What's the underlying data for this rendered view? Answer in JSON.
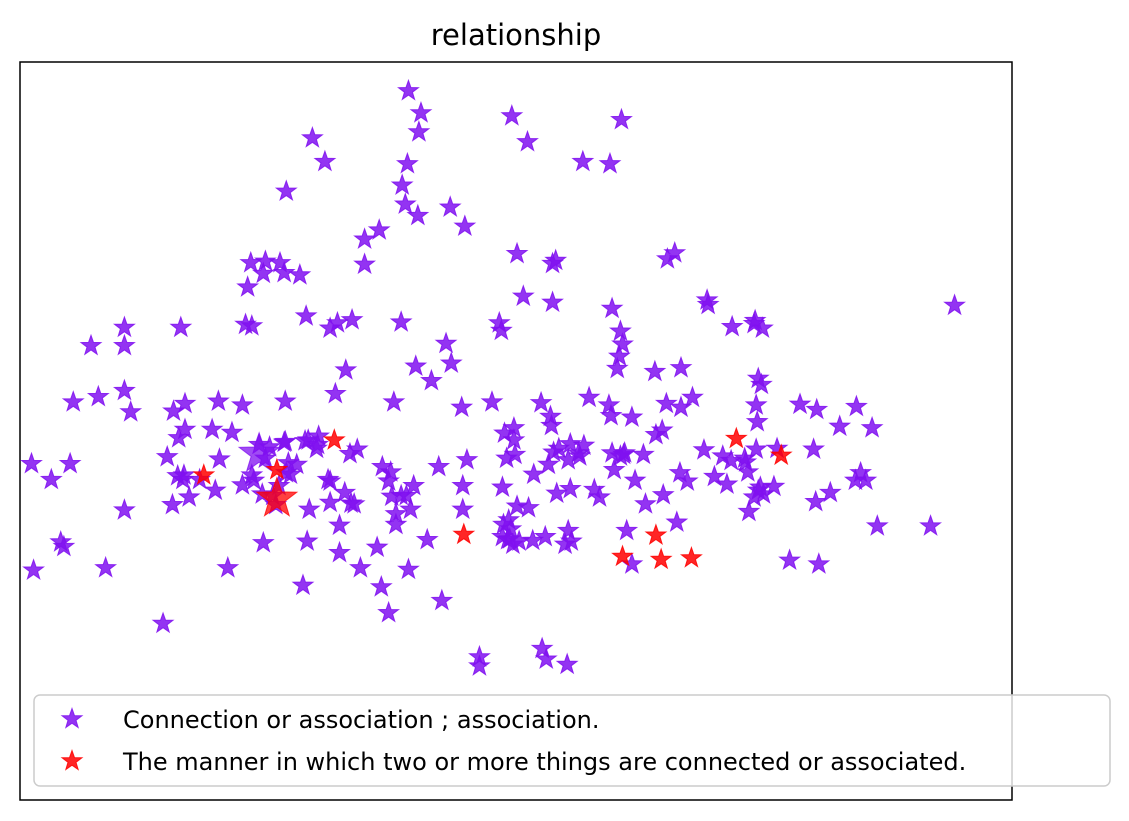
{
  "chart_data": {
    "type": "scatter",
    "title": "relationship",
    "xlabel": "",
    "ylabel": "",
    "xlim": [
      -0.35,
      0.6
    ],
    "ylim": [
      -0.45,
      0.52
    ],
    "axes_ticks": false,
    "grid": false,
    "legend_position": "lower-right",
    "marker": "star",
    "series": [
      {
        "name": "Connection or association ; association.",
        "color": "#8010f0",
        "highlight": [
          -0.121,
          0.005
        ],
        "points": [
          [
            0.022,
            0.482
          ],
          [
            0.034,
            0.453
          ],
          [
            0.121,
            0.449
          ],
          [
            0.226,
            0.444
          ],
          [
            0.032,
            0.428
          ],
          [
            -0.07,
            0.42
          ],
          [
            0.136,
            0.415
          ],
          [
            0.021,
            0.386
          ],
          [
            0.189,
            0.389
          ],
          [
            0.215,
            0.386
          ],
          [
            -0.058,
            0.389
          ],
          [
            0.016,
            0.358
          ],
          [
            -0.095,
            0.35
          ],
          [
            0.019,
            0.333
          ],
          [
            0.062,
            0.329
          ],
          [
            0.031,
            0.318
          ],
          [
            0.076,
            0.304
          ],
          [
            -0.006,
            0.299
          ],
          [
            -0.02,
            0.287
          ],
          [
            0.126,
            0.268
          ],
          [
            0.277,
            0.269
          ],
          [
            0.27,
            0.261
          ],
          [
            -0.02,
            0.254
          ],
          [
            0.16,
            0.255
          ],
          [
            0.163,
            0.259
          ],
          [
            -0.101,
            0.256
          ],
          [
            -0.115,
            0.258
          ],
          [
            -0.097,
            0.243
          ],
          [
            -0.129,
            0.256
          ],
          [
            -0.117,
            0.242
          ],
          [
            -0.082,
            0.24
          ],
          [
            -0.132,
            0.224
          ],
          [
            0.132,
            0.212
          ],
          [
            0.16,
            0.204
          ],
          [
            0.015,
            0.178
          ],
          [
            0.308,
            0.207
          ],
          [
            0.309,
            0.201
          ],
          [
            0.217,
            0.196
          ],
          [
            0.225,
            0.166
          ],
          [
            0.353,
            0.176
          ],
          [
            0.354,
            0.18
          ],
          [
            0.332,
            0.172
          ],
          [
            0.361,
            0.17
          ],
          [
            -0.076,
            0.186
          ],
          [
            -0.25,
            0.171
          ],
          [
            -0.196,
            0.171
          ],
          [
            -0.128,
            0.173
          ],
          [
            -0.134,
            0.175
          ],
          [
            -0.046,
            0.177
          ],
          [
            -0.032,
            0.181
          ],
          [
            -0.053,
            0.17
          ],
          [
            0.058,
            0.15
          ],
          [
            0.111,
            0.167
          ],
          [
            0.109,
            0.177
          ],
          [
            0.227,
            0.149
          ],
          [
            -0.282,
            0.147
          ],
          [
            -0.25,
            0.147
          ],
          [
            0.063,
            0.124
          ],
          [
            -0.038,
            0.115
          ],
          [
            0.029,
            0.12
          ],
          [
            0.044,
            0.101
          ],
          [
            0.222,
            0.117
          ],
          [
            0.258,
            0.113
          ],
          [
            0.283,
            0.118
          ],
          [
            0.224,
            0.133
          ],
          [
            0.357,
            0.104
          ],
          [
            0.36,
            0.096
          ],
          [
            0.294,
            0.079
          ],
          [
            0.195,
            0.079
          ],
          [
            -0.25,
            0.088
          ],
          [
            -0.275,
            0.08
          ],
          [
            -0.299,
            0.073
          ],
          [
            -0.16,
            0.074
          ],
          [
            -0.096,
            0.074
          ],
          [
            0.008,
            0.073
          ],
          [
            -0.048,
            0.084
          ],
          [
            0.073,
            0.066
          ],
          [
            0.102,
            0.073
          ],
          [
            0.149,
            0.072
          ],
          [
            0.214,
            0.069
          ],
          [
            0.269,
            0.071
          ],
          [
            0.283,
            0.066
          ],
          [
            -0.192,
            0.071
          ],
          [
            -0.244,
            0.06
          ],
          [
            -0.137,
            0.069
          ],
          [
            0.236,
            0.053
          ],
          [
            0.158,
            0.054
          ],
          [
            0.216,
            0.055
          ],
          [
            0.159,
            0.042
          ],
          [
            0.123,
            0.039
          ],
          [
            0.114,
            0.032
          ],
          [
            0.397,
            0.07
          ],
          [
            0.355,
            0.069
          ],
          [
            0.451,
            0.067
          ],
          [
            0.265,
            0.036
          ],
          [
            0.356,
            0.047
          ],
          [
            -0.203,
            0.061
          ],
          [
            -0.198,
            0.026
          ],
          [
            -0.192,
            0.037
          ],
          [
            -0.166,
            0.037
          ],
          [
            -0.147,
            0.033
          ],
          [
            -0.121,
            0.017
          ],
          [
            -0.111,
            0.014
          ],
          [
            -0.097,
            0.02
          ],
          [
            -0.096,
            0.021
          ],
          [
            -0.077,
            0.022
          ],
          [
            -0.074,
            0.023
          ],
          [
            -0.064,
            0.028
          ],
          [
            -0.066,
            0.012
          ],
          [
            -0.065,
            0.017
          ],
          [
            0.123,
            0.023
          ],
          [
            0.124,
            0.004
          ],
          [
            0.161,
            0.007
          ],
          [
            0.185,
            0.006
          ],
          [
            0.177,
            0.018
          ],
          [
            0.166,
            0.012
          ],
          [
            0.19,
            0.016
          ],
          [
            0.217,
            0.006
          ],
          [
            0.225,
            0.002
          ],
          [
            0.247,
            0.004
          ],
          [
            0.229,
            0.006
          ],
          [
            0.228,
            0.004
          ],
          [
            0.259,
            0.03
          ],
          [
            0.323,
            0.002
          ],
          [
            0.305,
            0.01
          ],
          [
            0.331,
            -0.004
          ],
          [
            0.344,
            -0.001
          ],
          [
            0.355,
            0.011
          ],
          [
            0.375,
            0.012
          ],
          [
            0.41,
            0.011
          ],
          [
            0.435,
            0.041
          ],
          [
            0.413,
            0.063
          ],
          [
            0.466,
            0.039
          ],
          [
            0.545,
            0.2
          ],
          [
            -0.339,
            -0.008
          ],
          [
            -0.302,
            -0.008
          ],
          [
            -0.209,
            0.001
          ],
          [
            -0.159,
            -0.002
          ],
          [
            -0.115,
            -0.001
          ],
          [
            -0.093,
            -0.007
          ],
          [
            -0.034,
            0.005
          ],
          [
            -0.027,
            0.011
          ],
          [
            -0.003,
            -0.012
          ],
          [
            0.051,
            -0.012
          ],
          [
            0.078,
            -0.003
          ],
          [
            0.116,
            -0.001
          ],
          [
            0.175,
            -0.003
          ],
          [
            0.186,
            0.002
          ],
          [
            0.156,
            -0.009
          ],
          [
            0.142,
            -0.022
          ],
          [
            0.219,
            -0.016
          ],
          [
            0.282,
            -0.02
          ],
          [
            0.315,
            -0.025
          ],
          [
            0.289,
            -0.031
          ],
          [
            0.347,
            -0.019
          ],
          [
            0.357,
            -0.043
          ],
          [
            0.359,
            -0.039
          ],
          [
            0.362,
            -0.048
          ],
          [
            0.353,
            -0.052
          ],
          [
            0.372,
            -0.038
          ],
          [
            0.455,
            -0.02
          ],
          [
            0.46,
            -0.03
          ],
          [
            0.345,
            -0.006
          ],
          [
            -0.193,
            -0.023
          ],
          [
            -0.199,
            -0.024
          ],
          [
            -0.194,
            -0.029
          ],
          [
            -0.178,
            -0.029
          ],
          [
            -0.128,
            -0.023
          ],
          [
            -0.085,
            -0.009
          ],
          [
            -0.095,
            -0.02
          ],
          [
            -0.091,
            -0.022
          ],
          [
            -0.102,
            -0.037
          ],
          [
            -0.126,
            -0.03
          ],
          [
            -0.118,
            -0.048
          ],
          [
            -0.108,
            -0.05
          ],
          [
            -0.137,
            -0.036
          ],
          [
            -0.163,
            -0.043
          ],
          [
            -0.188,
            -0.052
          ],
          [
            -0.204,
            -0.062
          ],
          [
            -0.25,
            -0.069
          ],
          [
            -0.32,
            -0.029
          ],
          [
            -0.105,
            -0.062
          ],
          [
            -0.053,
            -0.031
          ],
          [
            -0.055,
            -0.029
          ],
          [
            -0.039,
            -0.046
          ],
          [
            -0.03,
            -0.061
          ],
          [
            -0.053,
            -0.059
          ],
          [
            -0.033,
            -0.06
          ],
          [
            -0.073,
            -0.068
          ],
          [
            0.005,
            -0.019
          ],
          [
            0.003,
            -0.031
          ],
          [
            0.006,
            -0.051
          ],
          [
            0.015,
            -0.05
          ],
          [
            0.02,
            -0.05
          ],
          [
            0.027,
            -0.037
          ],
          [
            0.074,
            -0.037
          ],
          [
            0.112,
            -0.039
          ],
          [
            0.126,
            -0.064
          ],
          [
            0.137,
            -0.066
          ],
          [
            0.164,
            -0.047
          ],
          [
            0.177,
            -0.041
          ],
          [
            0.2,
            -0.042
          ],
          [
            0.205,
            -0.052
          ],
          [
            0.239,
            -0.03
          ],
          [
            0.249,
            -0.061
          ],
          [
            0.266,
            -0.049
          ],
          [
            0.327,
            -0.035
          ],
          [
            0.348,
            -0.071
          ],
          [
            0.412,
            -0.058
          ],
          [
            0.426,
            -0.046
          ],
          [
            0.45,
            -0.03
          ],
          [
            -0.044,
            -0.089
          ],
          [
            0.01,
            -0.074
          ],
          [
            0.01,
            -0.088
          ],
          [
            0.024,
            -0.068
          ],
          [
            0.074,
            -0.068
          ],
          [
            0.113,
            -0.088
          ],
          [
            0.112,
            -0.104
          ],
          [
            0.119,
            -0.107
          ],
          [
            0.117,
            -0.108
          ],
          [
            0.122,
            -0.114
          ],
          [
            0.128,
            -0.11
          ],
          [
            0.141,
            -0.109
          ],
          [
            0.118,
            -0.082
          ],
          [
            0.12,
            -0.094
          ],
          [
            0.153,
            -0.104
          ],
          [
            0.175,
            -0.096
          ],
          [
            0.172,
            -0.114
          ],
          [
            0.178,
            -0.11
          ],
          [
            0.231,
            -0.096
          ],
          [
            0.279,
            -0.085
          ],
          [
            0.236,
            -0.14
          ],
          [
            0.387,
            -0.135
          ],
          [
            0.415,
            -0.14
          ],
          [
            0.471,
            -0.09
          ],
          [
            0.522,
            -0.09
          ],
          [
            -0.337,
            -0.148
          ],
          [
            -0.311,
            -0.111
          ],
          [
            -0.308,
            -0.117
          ],
          [
            -0.268,
            -0.145
          ],
          [
            -0.151,
            -0.145
          ],
          [
            -0.117,
            -0.112
          ],
          [
            -0.075,
            -0.11
          ],
          [
            -0.008,
            -0.118
          ],
          [
            -0.024,
            -0.145
          ],
          [
            -0.004,
            -0.17
          ],
          [
            -0.044,
            -0.125
          ],
          [
            -0.079,
            -0.168
          ],
          [
            0.022,
            -0.147
          ],
          [
            0.04,
            -0.108
          ],
          [
            0.054,
            -0.188
          ],
          [
            -0.213,
            -0.218
          ],
          [
            0.003,
            -0.204
          ],
          [
            0.15,
            -0.251
          ],
          [
            0.154,
            -0.265
          ],
          [
            0.174,
            -0.272
          ],
          [
            0.09,
            -0.274
          ],
          [
            0.09,
            -0.262
          ]
        ]
      },
      {
        "name": "The manner in which two or more things are connected or associated.",
        "color": "#ff0000",
        "highlight": [
          -0.104,
          -0.054
        ],
        "points": [
          [
            -0.049,
            0.023
          ],
          [
            0.336,
            0.025
          ],
          [
            0.379,
            0.003
          ],
          [
            -0.174,
            -0.023
          ],
          [
            -0.104,
            -0.016
          ],
          [
            0.075,
            -0.101
          ],
          [
            0.259,
            -0.102
          ],
          [
            0.227,
            -0.13
          ],
          [
            0.264,
            -0.134
          ],
          [
            0.293,
            -0.132
          ]
        ]
      }
    ]
  }
}
